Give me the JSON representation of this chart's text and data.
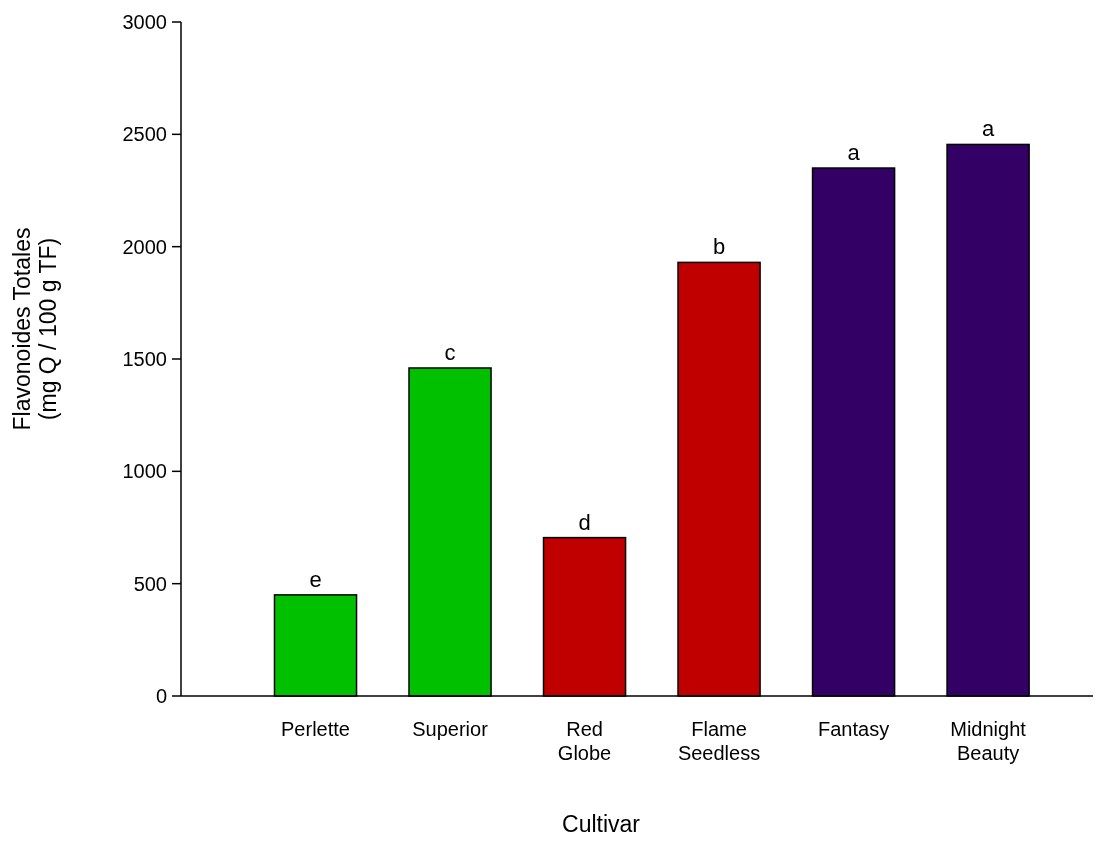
{
  "chart_data": {
    "type": "bar",
    "xlabel": "Cultivar",
    "ylabel": "Flavonoides Totales\n(mg Q / 100 g TF)",
    "categories": [
      "Perlette",
      "Superior",
      "Red Globe",
      "Flame Seedless",
      "Fantasy",
      "Midnight Beauty"
    ],
    "values": [
      450,
      1460,
      705,
      1930,
      2350,
      2455
    ],
    "colors": [
      "#00c000",
      "#00c000",
      "#c00000",
      "#c00000",
      "#330066",
      "#330066"
    ],
    "ylim": [
      0,
      3000
    ],
    "yticks": [
      0,
      500,
      1000,
      1500,
      2000,
      2500,
      3000
    ],
    "annotations": [
      {
        "text": "e",
        "x": "Perlette",
        "y": 450
      },
      {
        "text": "c",
        "x": "Superior",
        "y": 1460
      },
      {
        "text": "d",
        "x": "Red Globe",
        "y": 705
      },
      {
        "text": "b",
        "x": "Flame Seedless",
        "y": 1930
      },
      {
        "text": "a",
        "x": "Fantasy",
        "y": 2350
      },
      {
        "text": "a",
        "x": "Midnight Beauty",
        "y": 2455
      }
    ]
  }
}
